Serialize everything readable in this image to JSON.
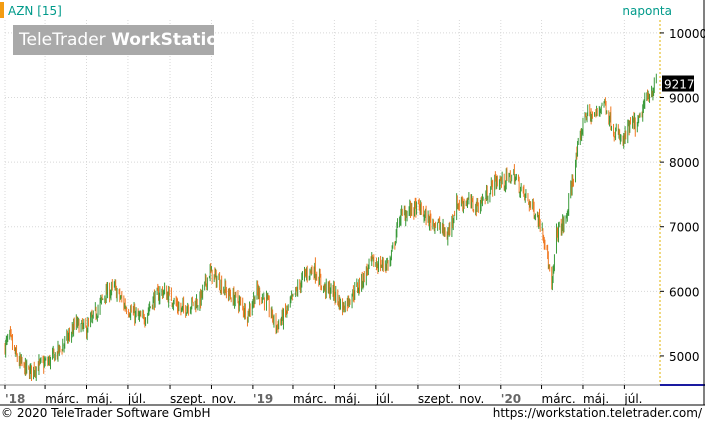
{
  "header": {
    "ticker_label": "AZN [15]",
    "period_label": "naponta"
  },
  "logo": {
    "brand_regular": "TeleTrader",
    "brand_bold": "WorkStation"
  },
  "footer": {
    "copyright": "© 2020 TeleTrader Software GmbH",
    "url": "https://workstation.teletrader.com/"
  },
  "colors": {
    "up": "#3a9a3a",
    "down": "#f07820",
    "text_accent": "#009a8a",
    "last_price_bg": "#000000",
    "grid": "#d8d8d8",
    "axis": "#000000",
    "bottom_line": "#1a1aa0"
  },
  "chart_data": {
    "type": "candlestick",
    "title": "AZN [15]",
    "interval": "naponta",
    "last_value": 9217,
    "last_label": "9217",
    "ylim": [
      4550,
      10200
    ],
    "y_ticks": [
      5000,
      6000,
      7000,
      8000,
      9000,
      10000
    ],
    "y_tick_labels": [
      "5000",
      "6000",
      "7000",
      "8000",
      "9000",
      "10000"
    ],
    "x_range": [
      "2018-01-01",
      "2020-08-18"
    ],
    "x_ticks": [
      {
        "date": "2018-01-01",
        "label": "'18"
      },
      {
        "date": "2018-03-01",
        "label": "márc."
      },
      {
        "date": "2018-05-01",
        "label": "máj."
      },
      {
        "date": "2018-07-01",
        "label": "júl."
      },
      {
        "date": "2018-09-01",
        "label": "szept."
      },
      {
        "date": "2018-11-01",
        "label": "nov."
      },
      {
        "date": "2019-01-01",
        "label": "'19"
      },
      {
        "date": "2019-03-01",
        "label": "márc."
      },
      {
        "date": "2019-05-01",
        "label": "máj."
      },
      {
        "date": "2019-07-01",
        "label": "júl."
      },
      {
        "date": "2019-09-01",
        "label": "szept."
      },
      {
        "date": "2019-11-01",
        "label": "nov."
      },
      {
        "date": "2020-01-01",
        "label": "'20"
      },
      {
        "date": "2020-03-01",
        "label": "márc."
      },
      {
        "date": "2020-05-01",
        "label": "máj."
      },
      {
        "date": "2020-07-01",
        "label": "júl."
      }
    ],
    "x": [
      "2018-01-01",
      "2018-01-08",
      "2018-01-15",
      "2018-01-22",
      "2018-02-05",
      "2018-02-19",
      "2018-03-05",
      "2018-03-19",
      "2018-04-02",
      "2018-04-16",
      "2018-04-30",
      "2018-05-14",
      "2018-05-28",
      "2018-06-11",
      "2018-06-25",
      "2018-07-09",
      "2018-07-23",
      "2018-08-06",
      "2018-08-20",
      "2018-09-03",
      "2018-09-17",
      "2018-10-01",
      "2018-10-15",
      "2018-10-29",
      "2018-11-12",
      "2018-11-26",
      "2018-12-10",
      "2018-12-24",
      "2019-01-07",
      "2019-01-21",
      "2019-02-04",
      "2019-02-18",
      "2019-03-04",
      "2019-03-18",
      "2019-04-01",
      "2019-04-15",
      "2019-04-29",
      "2019-05-13",
      "2019-05-27",
      "2019-06-10",
      "2019-06-24",
      "2019-07-08",
      "2019-07-22",
      "2019-08-05",
      "2019-08-19",
      "2019-09-02",
      "2019-09-16",
      "2019-09-30",
      "2019-10-14",
      "2019-10-28",
      "2019-11-11",
      "2019-11-25",
      "2019-12-09",
      "2019-12-23",
      "2020-01-06",
      "2020-01-20",
      "2020-02-03",
      "2020-02-17",
      "2020-03-02",
      "2020-03-09",
      "2020-03-16",
      "2020-03-23",
      "2020-04-06",
      "2020-04-20",
      "2020-05-04",
      "2020-05-18",
      "2020-06-01",
      "2020-06-15",
      "2020-06-29",
      "2020-07-06",
      "2020-07-13",
      "2020-07-20",
      "2020-08-03",
      "2020-08-17"
    ],
    "values": [
      5150,
      5300,
      5050,
      4900,
      4750,
      4850,
      4900,
      5050,
      5250,
      5500,
      5400,
      5650,
      5950,
      6050,
      5800,
      5650,
      5550,
      5850,
      6000,
      5900,
      5700,
      5800,
      5850,
      6300,
      6150,
      5950,
      5850,
      5650,
      6000,
      5850,
      5450,
      5650,
      5950,
      6250,
      6350,
      6050,
      6000,
      5750,
      5950,
      6150,
      6450,
      6400,
      6450,
      7150,
      7250,
      7300,
      7100,
      7050,
      6850,
      7350,
      7400,
      7300,
      7450,
      7700,
      7700,
      7800,
      7500,
      7300,
      7000,
      6600,
      6000,
      6900,
      7100,
      8000,
      8750,
      8700,
      8950,
      8500,
      8300,
      8500,
      8600,
      8550,
      9000,
      9217
    ]
  }
}
